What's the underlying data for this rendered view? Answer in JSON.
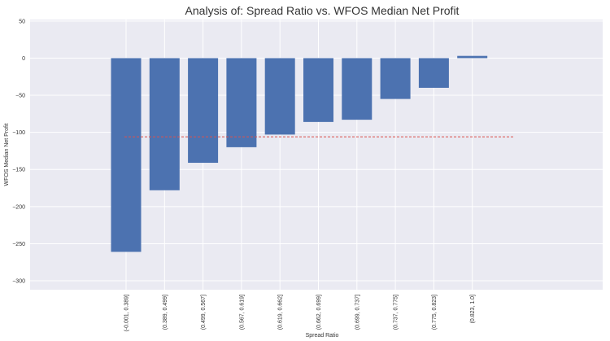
{
  "chart_data": {
    "type": "bar",
    "title": "Analysis of: Spread Ratio vs. WFOS Median Net Profit",
    "xlabel": "Spread Ratio",
    "ylabel": "WFOS Median Net Profit",
    "categories": [
      "(-0.001, 0.389]",
      "(0.389, 0.499]",
      "(0.499, 0.567]",
      "(0.567, 0.619]",
      "(0.619, 0.662]",
      "(0.662, 0.699]",
      "(0.699, 0.737]",
      "(0.737, 0.775]",
      "(0.775, 0.823]",
      "(0.823, 1.0]"
    ],
    "values": [
      -261,
      -178,
      -141,
      -120,
      -103,
      -86,
      -83,
      -55,
      -40,
      3
    ],
    "reference_line": {
      "value": -106,
      "style": "dashed",
      "color": "#d9534f"
    },
    "ylim": [
      -312,
      52
    ],
    "yticks": [
      50,
      0,
      -50,
      -100,
      -150,
      -200,
      -250,
      -300
    ],
    "grid": true,
    "colors": {
      "bar": "#4c72b0",
      "background": "#eaeaf2",
      "grid": "#ffffff"
    }
  }
}
